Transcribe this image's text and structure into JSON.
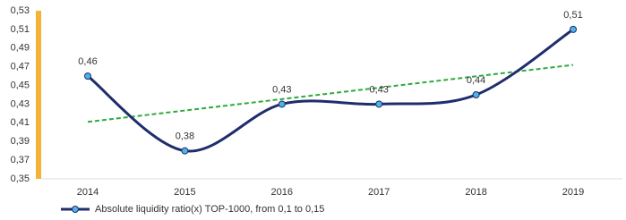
{
  "chart_data": {
    "type": "line",
    "categories": [
      "2014",
      "2015",
      "2016",
      "2017",
      "2018",
      "2019"
    ],
    "series": [
      {
        "name": "Absolute liquidity ratio(x) TOP-1000, from 0,1 to 0,15",
        "color": "#1f2d6b",
        "values": [
          0.46,
          0.38,
          0.43,
          0.43,
          0.44,
          0.51
        ],
        "value_labels": [
          "0,46",
          "0,38",
          "0,43",
          "0,43",
          "0,44",
          "0,51"
        ]
      }
    ],
    "trend": {
      "color": "#2eaa3c",
      "values": [
        0.411,
        0.472
      ]
    },
    "ylim": [
      0.35,
      0.53
    ],
    "yticks": [
      {
        "value": 0.35,
        "label": "0,35"
      },
      {
        "value": 0.37,
        "label": "0,37"
      },
      {
        "value": 0.39,
        "label": "0,39"
      },
      {
        "value": 0.41,
        "label": "0,41"
      },
      {
        "value": 0.43,
        "label": "0,43"
      },
      {
        "value": 0.45,
        "label": "0,45"
      },
      {
        "value": 0.47,
        "label": "0,47"
      },
      {
        "value": 0.49,
        "label": "0,49"
      },
      {
        "value": 0.51,
        "label": "0,51"
      },
      {
        "value": 0.53,
        "label": "0,53"
      }
    ],
    "smooth": true,
    "accent_color": "#f5b335",
    "legend": "bottom-left"
  }
}
